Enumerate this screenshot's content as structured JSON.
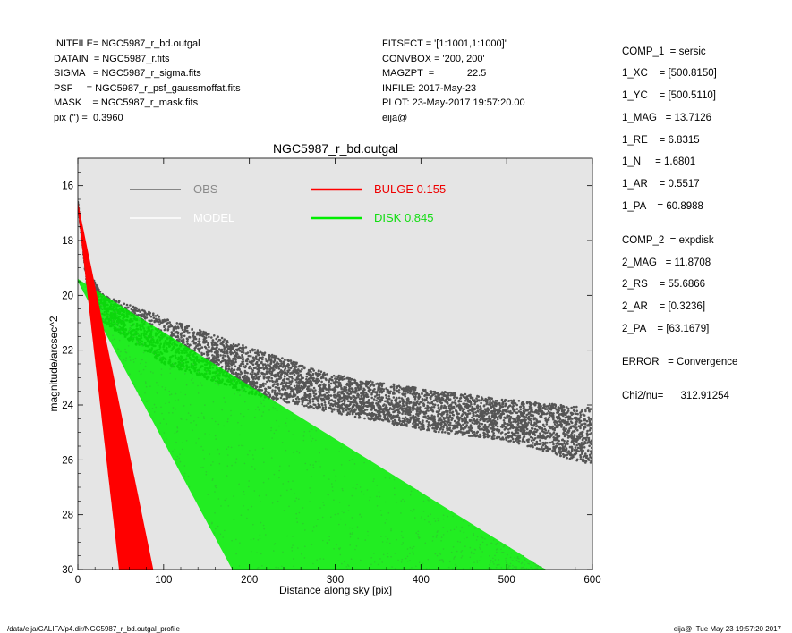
{
  "header_left": [
    "INITFILE= NGC5987_r_bd.outgal",
    "DATAIN  = NGC5987_r.fits",
    "SIGMA   = NGC5987_r_sigma.fits",
    "PSF     = NGC5987_r_psf_gaussmoffat.fits",
    "MASK    = NGC5987_r_mask.fits",
    "pix (\") =  0.3960"
  ],
  "header_mid": [
    "FITSECT = '[1:1001,1:1000]'",
    "CONVBOX = '200, 200'",
    "MAGZPT  =            22.5",
    "INFILE: 2017-May-23",
    "PLOT: 23-May-2017 19:57:20.00",
    "eija@"
  ],
  "params": [
    "COMP_1  = sersic",
    "1_XC    = [500.8150]",
    "1_YC    = [500.5110]",
    "1_MAG   = 13.7126",
    "1_RE    = 6.8315",
    "1_N     = 1.6801",
    "1_AR    = 0.5517",
    "1_PA    = 60.8988",
    "COMP_2  = expdisk",
    "2_MAG   = 11.8708",
    "2_RS    = 55.6866",
    "2_AR    = [0.3236]",
    "2_PA    = [63.1679]",
    "ERROR   = Convergence",
    "Chi2/nu=      312.91254"
  ],
  "footer_left": "/data/eija/CALIFA/p4.dir/NGC5987_r_bd.outgal_profile",
  "footer_right": "eija@  Tue May 23 19:57:20 2017",
  "chart_data": {
    "type": "scatter",
    "title": "NGC5987_r_bd.outgal",
    "xlabel": "Distance along sky [pix]",
    "ylabel": "magnitude/arcsec^2",
    "xlim": [
      0,
      600
    ],
    "ylim": [
      30,
      15
    ],
    "y_inverted": true,
    "xticks": [
      0,
      100,
      200,
      300,
      400,
      500,
      600
    ],
    "yticks": [
      16,
      18,
      20,
      22,
      24,
      26,
      28,
      30
    ],
    "grid": false,
    "plot_background": "#e5e5e5",
    "legend": [
      {
        "label": "OBS",
        "color": "#666666"
      },
      {
        "label": "MODEL",
        "color": "#ffffff"
      },
      {
        "label": "BULGE  0.155",
        "color": "#ff0000"
      },
      {
        "label": "DISK  0.845",
        "color": "#00ee00"
      }
    ],
    "series": [
      {
        "name": "OBS",
        "color": "#555555",
        "upper_envelope": [
          [
            0,
            16.6
          ],
          [
            10,
            19.0
          ],
          [
            30,
            20.0
          ],
          [
            100,
            20.8
          ],
          [
            200,
            21.9
          ],
          [
            300,
            22.9
          ],
          [
            400,
            23.4
          ],
          [
            500,
            23.8
          ],
          [
            600,
            24.1
          ]
        ],
        "lower_envelope": [
          [
            0,
            16.6
          ],
          [
            10,
            19.6
          ],
          [
            30,
            21.0
          ],
          [
            100,
            22.5
          ],
          [
            200,
            23.6
          ],
          [
            300,
            24.3
          ],
          [
            400,
            24.9
          ],
          [
            500,
            25.3
          ],
          [
            600,
            26.2
          ]
        ]
      },
      {
        "name": "BULGE",
        "color": "#ff0000",
        "upper_envelope": [
          [
            0,
            16.6
          ],
          [
            88,
            30
          ]
        ],
        "lower_envelope": [
          [
            0,
            16.9
          ],
          [
            48,
            30
          ]
        ]
      },
      {
        "name": "DISK",
        "color": "#00ee00",
        "upper_envelope": [
          [
            0,
            19.4
          ],
          [
            545,
            30
          ]
        ],
        "lower_envelope": [
          [
            0,
            19.5
          ],
          [
            180,
            30
          ]
        ]
      }
    ]
  }
}
